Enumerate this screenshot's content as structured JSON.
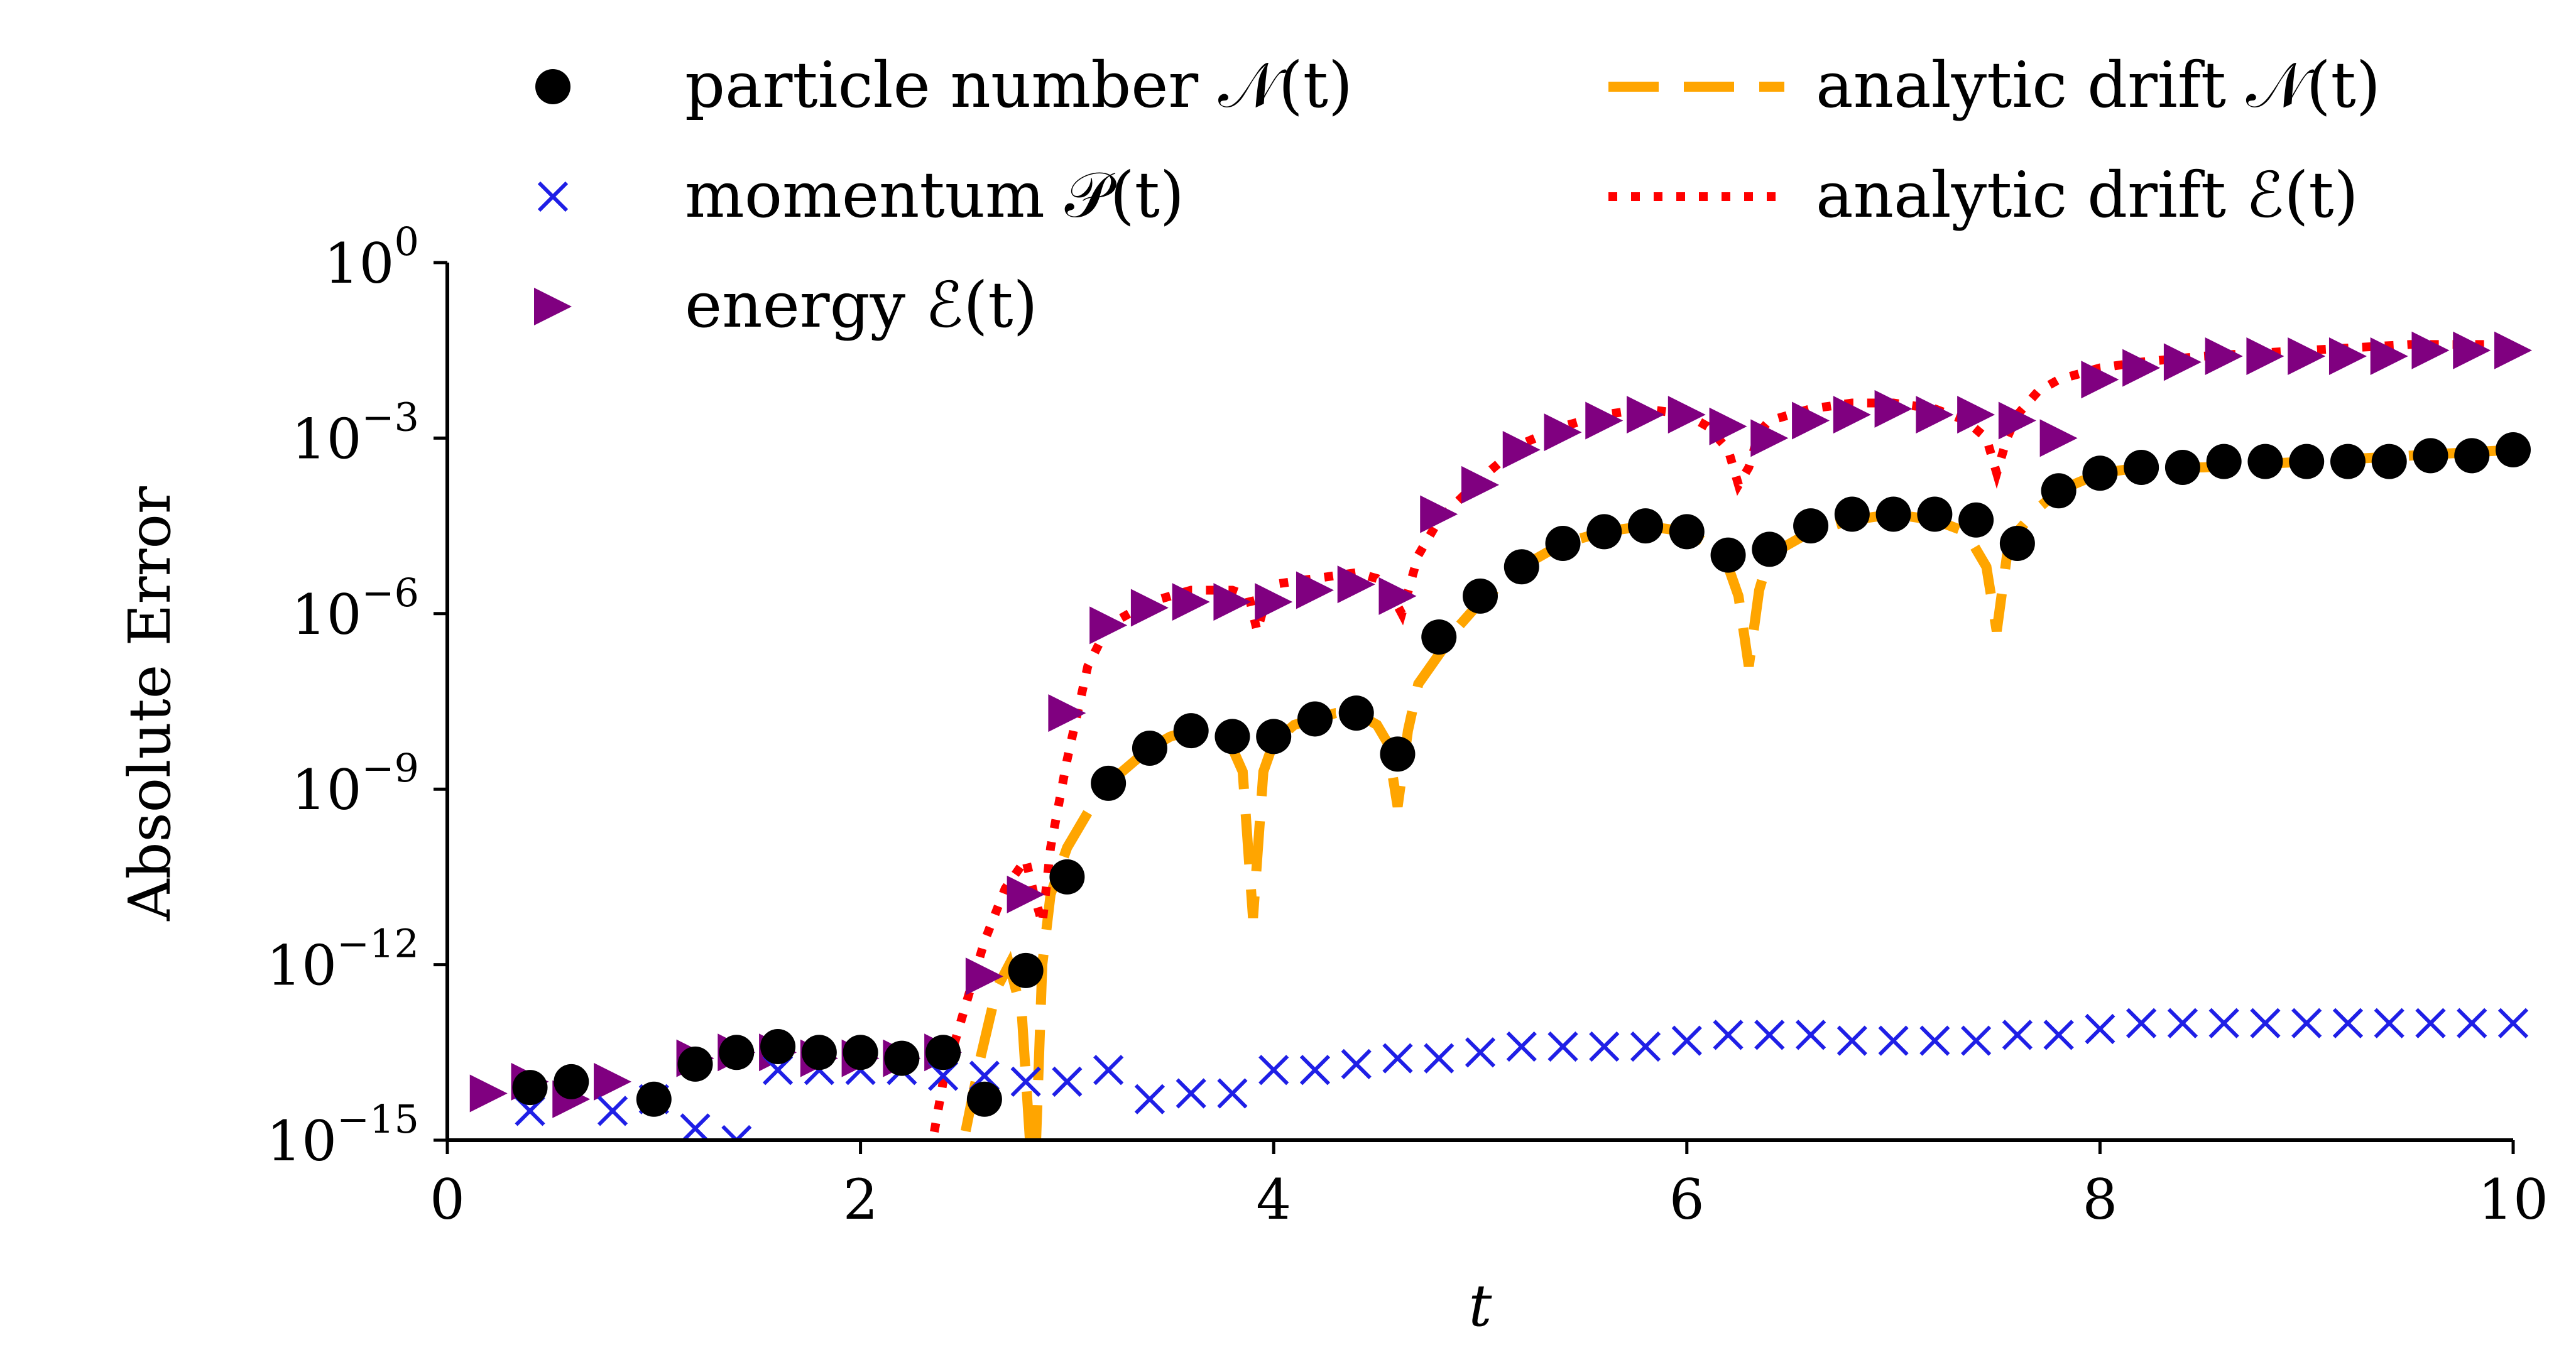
{
  "chart_data": {
    "type": "scatter",
    "xlabel": "t",
    "ylabel": "Absolute Error",
    "xlim": [
      0,
      10
    ],
    "ylim_log10": [
      -15,
      0
    ],
    "yscale": "log",
    "grid": false,
    "legend_placement": "top",
    "x_ticks": [
      0,
      2,
      4,
      6,
      8,
      10
    ],
    "y_ticks": [
      {
        "base": "10",
        "exp": "0",
        "log10": 0
      },
      {
        "base": "10",
        "exp": "−3",
        "log10": -3
      },
      {
        "base": "10",
        "exp": "−6",
        "log10": -6
      },
      {
        "base": "10",
        "exp": "−9",
        "log10": -9
      },
      {
        "base": "10",
        "exp": "−12",
        "log10": -12
      },
      {
        "base": "10",
        "exp": "−15",
        "log10": -15
      }
    ],
    "series": [
      {
        "name": "particle number 𝒩(t)",
        "marker": "circle",
        "color": "#000000",
        "t": [
          0.4,
          0.6,
          1.0,
          1.2,
          1.4,
          1.6,
          1.8,
          2.0,
          2.2,
          2.4,
          2.6,
          2.8,
          3.0,
          3.2,
          3.4,
          3.6,
          3.8,
          4.0,
          4.2,
          4.4,
          4.6,
          4.8,
          5.0,
          5.2,
          5.4,
          5.6,
          5.8,
          6.0,
          6.2,
          6.4,
          6.6,
          6.8,
          7.0,
          7.2,
          7.4,
          7.6,
          7.8,
          8.0,
          8.2,
          8.4,
          8.6,
          8.8,
          9.0,
          9.2,
          9.4,
          9.6,
          9.8,
          10.0
        ],
        "log10_error": [
          -14.1,
          -14.0,
          -14.3,
          -13.7,
          -13.5,
          -13.4,
          -13.5,
          -13.5,
          -13.6,
          -13.5,
          -14.3,
          -12.1,
          -10.5,
          -8.9,
          -8.3,
          -8.0,
          -8.1,
          -8.1,
          -7.8,
          -7.7,
          -8.4,
          -6.4,
          -5.7,
          -5.2,
          -4.8,
          -4.6,
          -4.5,
          -4.6,
          -5.0,
          -4.9,
          -4.5,
          -4.3,
          -4.3,
          -4.3,
          -4.4,
          -4.8,
          -3.9,
          -3.6,
          -3.5,
          -3.5,
          -3.4,
          -3.4,
          -3.4,
          -3.4,
          -3.4,
          -3.3,
          -3.3,
          -3.2
        ]
      },
      {
        "name": "momentum 𝒫(t)",
        "marker": "x",
        "color": "#1f1fe6",
        "t": [
          0.4,
          0.8,
          1.0,
          1.2,
          1.4,
          1.6,
          1.8,
          2.0,
          2.2,
          2.4,
          2.6,
          2.8,
          3.0,
          3.2,
          3.4,
          3.6,
          3.8,
          4.0,
          4.2,
          4.4,
          4.6,
          4.8,
          5.0,
          5.2,
          5.4,
          5.6,
          5.8,
          6.0,
          6.2,
          6.4,
          6.6,
          6.8,
          7.0,
          7.2,
          7.4,
          7.6,
          7.8,
          8.0,
          8.2,
          8.4,
          8.6,
          8.8,
          9.0,
          9.2,
          9.4,
          9.6,
          9.8,
          10.0
        ],
        "log10_error": [
          -14.5,
          -14.5,
          -14.3,
          -14.8,
          -15.0,
          -13.8,
          -13.8,
          -13.8,
          -13.8,
          -13.9,
          -13.9,
          -14.0,
          -14.0,
          -13.8,
          -14.3,
          -14.2,
          -14.2,
          -13.8,
          -13.8,
          -13.7,
          -13.6,
          -13.6,
          -13.5,
          -13.4,
          -13.4,
          -13.4,
          -13.4,
          -13.3,
          -13.2,
          -13.2,
          -13.2,
          -13.3,
          -13.3,
          -13.3,
          -13.3,
          -13.2,
          -13.2,
          -13.1,
          -13.0,
          -13.0,
          -13.0,
          -13.0,
          -13.0,
          -13.0,
          -13.0,
          -13.0,
          -13.0,
          -13.0
        ]
      },
      {
        "name": "energy ℰ(t)",
        "marker": "triangle-right",
        "color": "#800080",
        "t": [
          0.2,
          0.4,
          0.6,
          0.8,
          1.2,
          1.4,
          1.6,
          1.8,
          2.0,
          2.2,
          2.4,
          2.6,
          2.8,
          3.0,
          3.2,
          3.4,
          3.6,
          3.8,
          4.0,
          4.2,
          4.4,
          4.6,
          4.8,
          5.0,
          5.2,
          5.4,
          5.6,
          5.8,
          6.0,
          6.2,
          6.4,
          6.6,
          6.8,
          7.0,
          7.2,
          7.4,
          7.6,
          7.8,
          8.0,
          8.2,
          8.4,
          8.6,
          8.8,
          9.0,
          9.2,
          9.4,
          9.6,
          9.8,
          10.0
        ],
        "log10_error": [
          -14.2,
          -14.0,
          -14.3,
          -14.0,
          -13.6,
          -13.5,
          -13.5,
          -13.6,
          -13.6,
          -13.6,
          -13.5,
          -12.2,
          -10.8,
          -7.7,
          -6.2,
          -5.9,
          -5.8,
          -5.8,
          -5.8,
          -5.6,
          -5.5,
          -5.7,
          -4.3,
          -3.8,
          -3.2,
          -2.9,
          -2.7,
          -2.6,
          -2.6,
          -2.8,
          -3.0,
          -2.7,
          -2.6,
          -2.5,
          -2.6,
          -2.6,
          -2.7,
          -3.0,
          -2.0,
          -1.8,
          -1.7,
          -1.6,
          -1.6,
          -1.6,
          -1.6,
          -1.6,
          -1.5,
          -1.5,
          -1.5
        ]
      },
      {
        "name": "analytic drift 𝒩(t)",
        "style": "dashed",
        "color": "#ffa500",
        "t": [
          2.35,
          2.5,
          2.58,
          2.66,
          2.72,
          2.78,
          2.82,
          2.84,
          2.88,
          2.92,
          3.0,
          3.1,
          3.2,
          3.3,
          3.4,
          3.5,
          3.6,
          3.7,
          3.8,
          3.85,
          3.9,
          3.95,
          4.0,
          4.1,
          4.2,
          4.3,
          4.4,
          4.5,
          4.55,
          4.6,
          4.65,
          4.7,
          4.8,
          4.9,
          5.0,
          5.2,
          5.4,
          5.6,
          5.8,
          6.0,
          6.1,
          6.2,
          6.25,
          6.3,
          6.35,
          6.4,
          6.6,
          6.8,
          7.0,
          7.2,
          7.35,
          7.45,
          7.5,
          7.55,
          7.6,
          7.7,
          7.8,
          8.0,
          8.2,
          8.5,
          9.0,
          9.5,
          10.0
        ],
        "log10_error": [
          -16,
          -15.0,
          -13.6,
          -12.4,
          -12.0,
          -12.8,
          -15.0,
          -16,
          -12.0,
          -10.8,
          -10.0,
          -9.4,
          -8.9,
          -8.6,
          -8.3,
          -8.1,
          -8.0,
          -8.0,
          -8.3,
          -8.7,
          -11.2,
          -8.7,
          -8.2,
          -7.9,
          -7.8,
          -7.7,
          -7.7,
          -7.9,
          -8.2,
          -9.3,
          -8.0,
          -7.2,
          -6.7,
          -6.2,
          -5.8,
          -5.2,
          -4.8,
          -4.6,
          -4.5,
          -4.6,
          -4.8,
          -5.2,
          -5.7,
          -6.9,
          -5.6,
          -5.0,
          -4.6,
          -4.4,
          -4.3,
          -4.4,
          -4.6,
          -5.2,
          -6.3,
          -5.0,
          -4.6,
          -4.2,
          -3.9,
          -3.6,
          -3.5,
          -3.5,
          -3.4,
          -3.3,
          -3.2
        ]
      },
      {
        "name": "analytic drift ℰ(t)",
        "style": "dotted",
        "color": "#ff0000",
        "t": [
          2.3,
          2.4,
          2.5,
          2.6,
          2.7,
          2.8,
          2.84,
          2.88,
          2.92,
          3.0,
          3.1,
          3.2,
          3.4,
          3.6,
          3.8,
          3.88,
          3.92,
          3.96,
          4.0,
          4.2,
          4.4,
          4.5,
          4.56,
          4.62,
          4.7,
          4.8,
          5.0,
          5.2,
          5.4,
          5.6,
          5.8,
          6.0,
          6.1,
          6.2,
          6.25,
          6.3,
          6.35,
          6.4,
          6.6,
          6.8,
          7.0,
          7.2,
          7.35,
          7.45,
          7.5,
          7.55,
          7.6,
          7.7,
          7.8,
          8.0,
          8.2,
          8.5,
          9.0,
          9.5,
          10.0
        ],
        "log10_error": [
          -16,
          -14.0,
          -12.8,
          -11.6,
          -10.7,
          -10.2,
          -10.8,
          -11.3,
          -10.0,
          -8.5,
          -6.9,
          -6.2,
          -5.8,
          -5.6,
          -5.6,
          -5.7,
          -6.3,
          -5.8,
          -5.5,
          -5.4,
          -5.3,
          -5.4,
          -5.6,
          -6.0,
          -5.0,
          -4.4,
          -3.7,
          -3.1,
          -2.8,
          -2.6,
          -2.5,
          -2.6,
          -2.8,
          -3.2,
          -3.8,
          -3.5,
          -2.9,
          -2.7,
          -2.5,
          -2.4,
          -2.4,
          -2.5,
          -2.7,
          -3.0,
          -3.6,
          -3.0,
          -2.6,
          -2.2,
          -2.0,
          -1.8,
          -1.7,
          -1.6,
          -1.5,
          -1.4,
          -1.4
        ]
      }
    ]
  }
}
